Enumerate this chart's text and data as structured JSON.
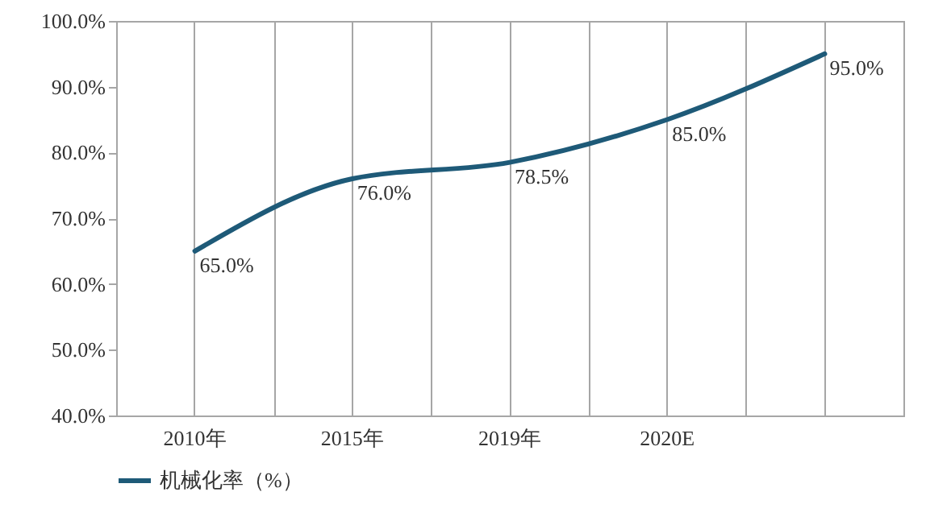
{
  "chart_data": {
    "type": "line",
    "categories": [
      "2010年",
      "2015年",
      "2019年",
      "2020E",
      null
    ],
    "series": [
      {
        "name": "机械化率（%）",
        "color": "#1e5a78",
        "values": [
          65.0,
          76.0,
          78.5,
          85.0,
          95.0
        ],
        "value_labels": [
          "65.0%",
          "76.0%",
          "78.5%",
          "85.0%",
          "95.0%"
        ]
      }
    ],
    "ylim": [
      40,
      100
    ],
    "yticks": [
      {
        "value": 40,
        "label": "40.0%"
      },
      {
        "value": 50,
        "label": "50.0%"
      },
      {
        "value": 60,
        "label": "60.0%"
      },
      {
        "value": 70,
        "label": "70.0%"
      },
      {
        "value": 80,
        "label": "80.0%"
      },
      {
        "value": 90,
        "label": "90.0%"
      },
      {
        "value": 100,
        "label": "100.0%"
      }
    ],
    "grid": "x",
    "legend": "bottom",
    "marker": "none",
    "line_style": "solid"
  }
}
